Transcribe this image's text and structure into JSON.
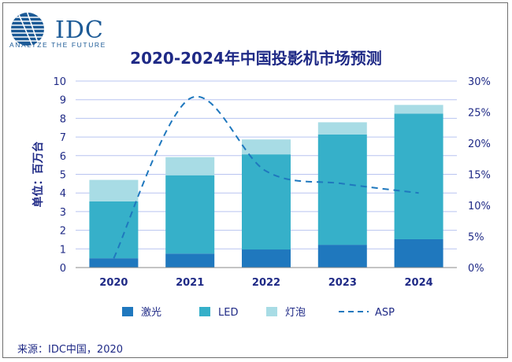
{
  "logo": {
    "text": "IDC",
    "tagline": "ANALYZE THE FUTURE"
  },
  "title": "2020-2024年中国投影机市场预测",
  "source": "来源：IDC中国，2020",
  "colors": {
    "laser": "#1f78be",
    "led": "#36b0c9",
    "bulb": "#a8dce5",
    "asp": "#1f78be",
    "axis_text": "#1f2a86",
    "grid": "#b8c4f0"
  },
  "chart_data": {
    "type": "bar",
    "stacked": true,
    "categories": [
      "2020",
      "2021",
      "2022",
      "2023",
      "2024"
    ],
    "series": [
      {
        "name": "激光",
        "values": [
          0.5,
          0.75,
          0.97,
          1.22,
          1.52
        ]
      },
      {
        "name": "LED",
        "values": [
          3.05,
          4.2,
          5.1,
          5.92,
          6.73
        ]
      },
      {
        "name": "灯泡",
        "values": [
          1.15,
          0.97,
          0.8,
          0.65,
          0.47
        ]
      }
    ],
    "line_series": {
      "name": "ASP",
      "axis": "right",
      "style": "dashed",
      "values": [
        1.5,
        27.2,
        15.5,
        13.5,
        12.0
      ]
    },
    "ylabel": "单位：百万台",
    "ylim": [
      0,
      10
    ],
    "yticks": [
      "0",
      "1",
      "2",
      "3",
      "4",
      "5",
      "6",
      "7",
      "8",
      "9",
      "10"
    ],
    "y2lim": [
      0,
      30
    ],
    "y2ticks": [
      "0%",
      "5%",
      "10%",
      "15%",
      "20%",
      "25%",
      "30%"
    ],
    "grid": true,
    "legend_position": "bottom"
  }
}
